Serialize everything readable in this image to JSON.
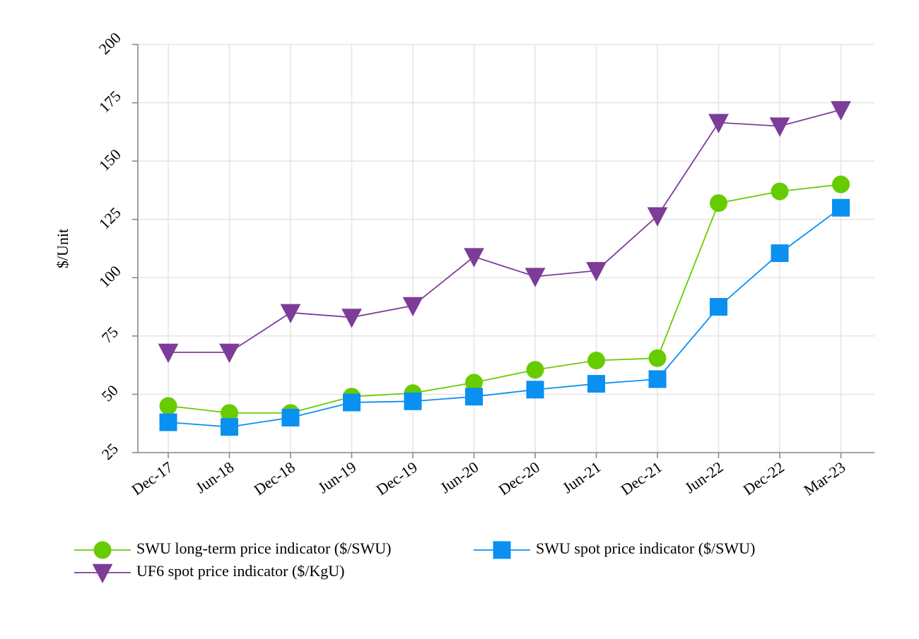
{
  "chart_data": {
    "type": "line",
    "title": "",
    "xlabel": "",
    "ylabel": "$/Unit",
    "categories": [
      "Dec-17",
      "Jun-18",
      "Dec-18",
      "Jun-19",
      "Dec-19",
      "Jun-20",
      "Dec-20",
      "Jun-21",
      "Dec-21",
      "Jun-22",
      "Dec-22",
      "Mar-23"
    ],
    "ylim": [
      25,
      200
    ],
    "yticks": [
      25,
      50,
      75,
      100,
      125,
      150,
      175,
      200
    ],
    "grid": true,
    "legend_position": "bottom",
    "series": [
      {
        "name": "SWU long-term price indicator ($/SWU)",
        "color": "#66cc00",
        "marker": "circle",
        "values": [
          45,
          42,
          42,
          49,
          50.5,
          55,
          60.5,
          64.5,
          65.5,
          132,
          137,
          140
        ]
      },
      {
        "name": "SWU spot price indicator ($/SWU)",
        "color": "#0a90f0",
        "marker": "square",
        "values": [
          38,
          36,
          40,
          46.5,
          47,
          49,
          52,
          54.5,
          56.5,
          87.5,
          110.5,
          130
        ]
      },
      {
        "name": "UF6 spot price indicator ($/KgU)",
        "color": "#7d3c98",
        "marker": "triangle-down",
        "values": [
          68,
          68,
          85,
          83,
          88,
          109,
          100.5,
          103,
          126.5,
          166.5,
          165,
          172
        ]
      }
    ]
  }
}
